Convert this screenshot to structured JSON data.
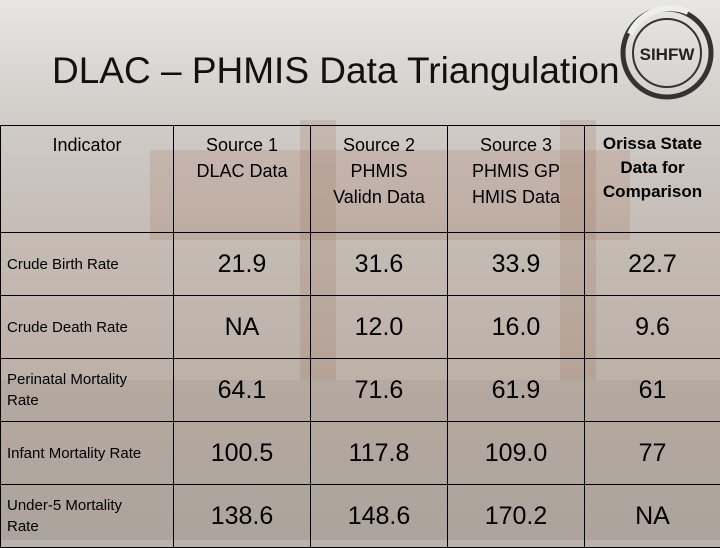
{
  "slide": {
    "title": "DLAC – PHMIS Data Triangulation",
    "logo_text": "SIHFW"
  },
  "table": {
    "headers": [
      [
        "Indicator"
      ],
      [
        "Source 1",
        "DLAC Data"
      ],
      [
        "Source 2",
        "PHMIS",
        "Validn Data"
      ],
      [
        "Source 3",
        "PHMIS GP",
        "HMIS Data"
      ],
      [
        "Orissa State",
        "Data for",
        "Comparison"
      ]
    ],
    "rows": [
      {
        "indicator": [
          "Crude Birth Rate"
        ],
        "values": [
          "21.9",
          "31.6",
          "33.9",
          "22.7"
        ]
      },
      {
        "indicator": [
          "Crude Death Rate"
        ],
        "values": [
          "NA",
          "12.0",
          "16.0",
          "9.6"
        ]
      },
      {
        "indicator": [
          "Perinatal Mortality",
          "Rate"
        ],
        "values": [
          "64.1",
          "71.6",
          "61.9",
          "61"
        ]
      },
      {
        "indicator": [
          "Infant Mortality Rate"
        ],
        "values": [
          "100.5",
          "117.8",
          "109.0",
          "77"
        ]
      },
      {
        "indicator": [
          "Under-5 Mortality",
          "Rate"
        ],
        "values": [
          "138.6",
          "148.6",
          "170.2",
          "NA"
        ]
      }
    ]
  }
}
